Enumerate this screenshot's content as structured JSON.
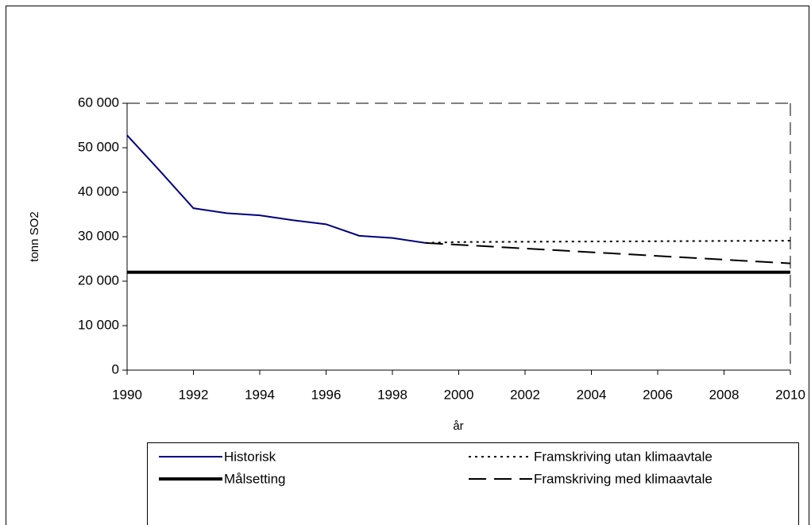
{
  "chart_data": {
    "type": "line",
    "ylabel": "tonn SO2",
    "xlabel": "år",
    "xlim": [
      1990,
      2010
    ],
    "xticks": [
      1990,
      1992,
      1994,
      1996,
      1998,
      2000,
      2002,
      2004,
      2006,
      2008,
      2010
    ],
    "ylim": [
      0,
      60000
    ],
    "yticks": [
      0,
      {
        "value": 10000,
        "label": "10 000"
      },
      {
        "value": 20000,
        "label": "20 000"
      },
      {
        "value": 30000,
        "label": "30 000"
      },
      {
        "value": 40000,
        "label": "40 000"
      },
      {
        "value": 50000,
        "label": "50 000"
      },
      {
        "value": 60000,
        "label": "60 000"
      }
    ],
    "grid": false,
    "series": [
      {
        "name": "Historisk",
        "color": "#000080",
        "style": "solid",
        "width": 2,
        "x": [
          1990,
          1991,
          1992,
          1993,
          1994,
          1995,
          1996,
          1997,
          1998,
          1999
        ],
        "values": [
          52800,
          44700,
          36400,
          35300,
          34800,
          33700,
          32800,
          30200,
          29700,
          28600
        ]
      },
      {
        "name": "Målsetting",
        "color": "#000000",
        "style": "solid",
        "width": 4,
        "x": [
          1990,
          2010
        ],
        "values": [
          22000,
          22000
        ]
      },
      {
        "name": "Framskriving utan klimaavtale",
        "color": "#000000",
        "style": "dotted",
        "width": 2,
        "x": [
          1999,
          2000,
          2010
        ],
        "values": [
          28600,
          28800,
          29100
        ]
      },
      {
        "name": "Framskriving med klimaavtale",
        "color": "#000000",
        "style": "dashed",
        "width": 2,
        "x": [
          1999,
          2010
        ],
        "values": [
          28600,
          24000
        ]
      }
    ]
  }
}
